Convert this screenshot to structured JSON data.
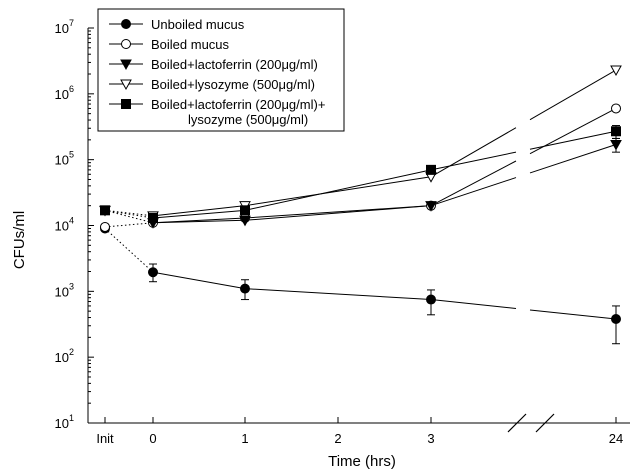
{
  "chart_data": {
    "type": "line",
    "xlabel": "Time (hrs)",
    "ylabel": "CFUs/ml",
    "y_scale": "log",
    "ylim": [
      10,
      10000000
    ],
    "x_ticks": [
      "Init",
      "0",
      "1",
      "2",
      "3",
      "24"
    ],
    "y_ticks": [
      {
        "value": 10,
        "base": "10",
        "exp": "1"
      },
      {
        "value": 100,
        "base": "10",
        "exp": "2"
      },
      {
        "value": 1000,
        "base": "10",
        "exp": "3"
      },
      {
        "value": 10000,
        "base": "10",
        "exp": "4"
      },
      {
        "value": 100000,
        "base": "10",
        "exp": "5"
      },
      {
        "value": 1000000,
        "base": "10",
        "exp": "6"
      },
      {
        "value": 10000000,
        "base": "10",
        "exp": "7"
      }
    ],
    "axis_break": "between 3 and 24",
    "series": [
      {
        "name": "Unboiled mucus",
        "marker": "circle-filled",
        "x": [
          "Init",
          "0",
          "1",
          "3",
          "24"
        ],
        "y": [
          9000,
          1950,
          1100,
          750,
          380
        ],
        "err_low": [
          null,
          1400,
          750,
          440,
          160
        ],
        "err_high": [
          null,
          2600,
          1500,
          1050,
          600
        ]
      },
      {
        "name": "Boiled mucus",
        "marker": "circle-open",
        "x": [
          "Init",
          "0",
          "1",
          "3",
          "24"
        ],
        "y": [
          9500,
          11000,
          13000,
          20000,
          600000
        ],
        "err_low": [
          null,
          null,
          null,
          null,
          null
        ],
        "err_high": [
          null,
          null,
          null,
          null,
          null
        ]
      },
      {
        "name": "Boiled+lactoferrin (200μg/ml)",
        "marker": "triangle-down-filled",
        "x": [
          "Init",
          "0",
          "1",
          "3",
          "24"
        ],
        "y": [
          17000,
          11000,
          12000,
          20000,
          170000
        ],
        "err_low": [
          null,
          null,
          null,
          null,
          130000
        ],
        "err_high": [
          null,
          null,
          null,
          null,
          210000
        ]
      },
      {
        "name": "Boiled+lysozyme (500μg/ml)",
        "marker": "triangle-down-open",
        "x": [
          "Init",
          "0",
          "1",
          "3",
          "24"
        ],
        "y": [
          17000,
          14000,
          20000,
          55000,
          2300000
        ],
        "err_low": [
          null,
          null,
          null,
          null,
          null
        ],
        "err_high": [
          null,
          null,
          null,
          null,
          null
        ]
      },
      {
        "name": "Boiled+lactoferrin (200μg/ml)+ lysozyme (500μg/ml)",
        "label_lines": [
          "Boiled+lactoferrin (200μg/ml)+",
          "lysozyme (500μg/ml)"
        ],
        "marker": "square-filled",
        "x": [
          "Init",
          "0",
          "1",
          "3",
          "24"
        ],
        "y": [
          17000,
          13000,
          17000,
          70000,
          270000
        ],
        "err_low": [
          null,
          null,
          null,
          null,
          210000
        ],
        "err_high": [
          null,
          null,
          null,
          null,
          330000
        ]
      }
    ]
  }
}
